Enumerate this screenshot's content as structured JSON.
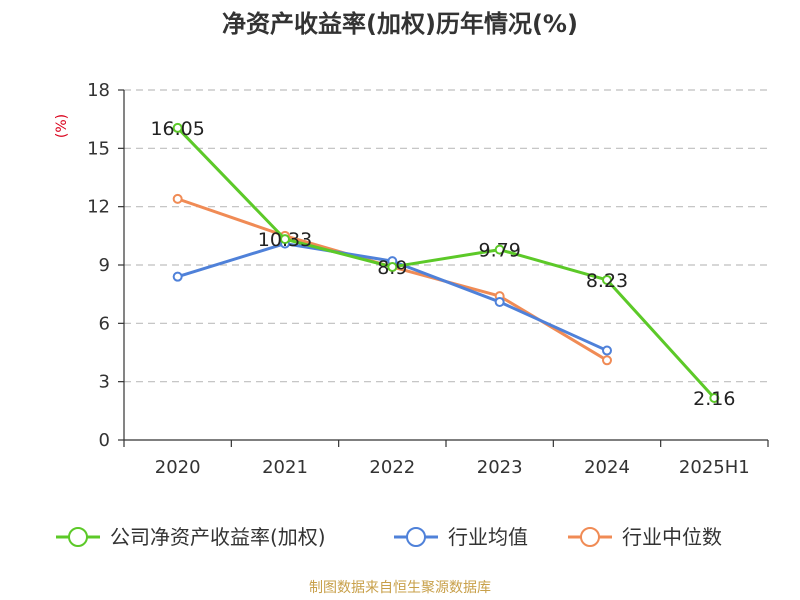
{
  "chart_data": {
    "type": "line",
    "title": "净资产收益率(加权)历年情况(%)",
    "ylabel": "(%)",
    "xlabel": "",
    "categories": [
      "2020",
      "2021",
      "2022",
      "2023",
      "2024",
      "2025H1"
    ],
    "ylim": [
      0,
      18
    ],
    "yticks": [
      0,
      3,
      6,
      9,
      12,
      15,
      18
    ],
    "grid": true,
    "legend_position": "bottom",
    "series": [
      {
        "name": "公司净资产收益率(加权)",
        "color": "#5cc928",
        "values": [
          16.05,
          10.33,
          8.9,
          9.79,
          8.23,
          2.16
        ],
        "labels": [
          "16.05",
          "10.33",
          "8.9",
          "9.79",
          "8.23",
          "2.16"
        ]
      },
      {
        "name": "行业均值",
        "color": "#4f81d9",
        "values": [
          8.4,
          10.1,
          9.2,
          7.1,
          4.6,
          null
        ]
      },
      {
        "name": "行业中位数",
        "color": "#f08b55",
        "values": [
          12.4,
          10.5,
          8.9,
          7.4,
          4.1,
          null
        ]
      }
    ]
  },
  "source": "制图数据来自恒生聚源数据库"
}
